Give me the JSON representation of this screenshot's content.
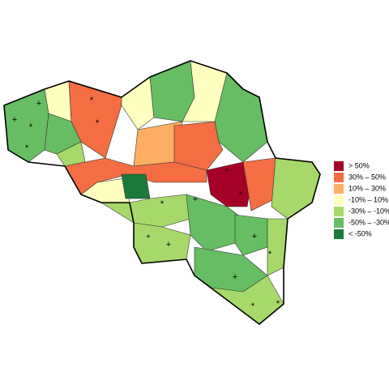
{
  "legend": {
    "items": [
      {
        "label": "> 50%",
        "color": "#a50026"
      },
      {
        "label": "30%  –   50%",
        "color": "#f46d43"
      },
      {
        "label": "10%  –   30%",
        "color": "#fdae61"
      },
      {
        "label": "-10%  –   10%",
        "color": "#ffffbf"
      },
      {
        "label": "-30%  –  -10%",
        "color": "#a6d96a"
      },
      {
        "label": "-50%  –  -30%",
        "color": "#66bd63"
      },
      {
        "label": "< -50%",
        "color": "#1a7a3a"
      }
    ]
  },
  "map": {
    "markers": [
      "+",
      "+",
      "*",
      "*",
      "*",
      "*",
      "*",
      "+",
      "*",
      "+",
      "*",
      "*",
      "+",
      "+",
      "*",
      "*",
      "*"
    ]
  }
}
